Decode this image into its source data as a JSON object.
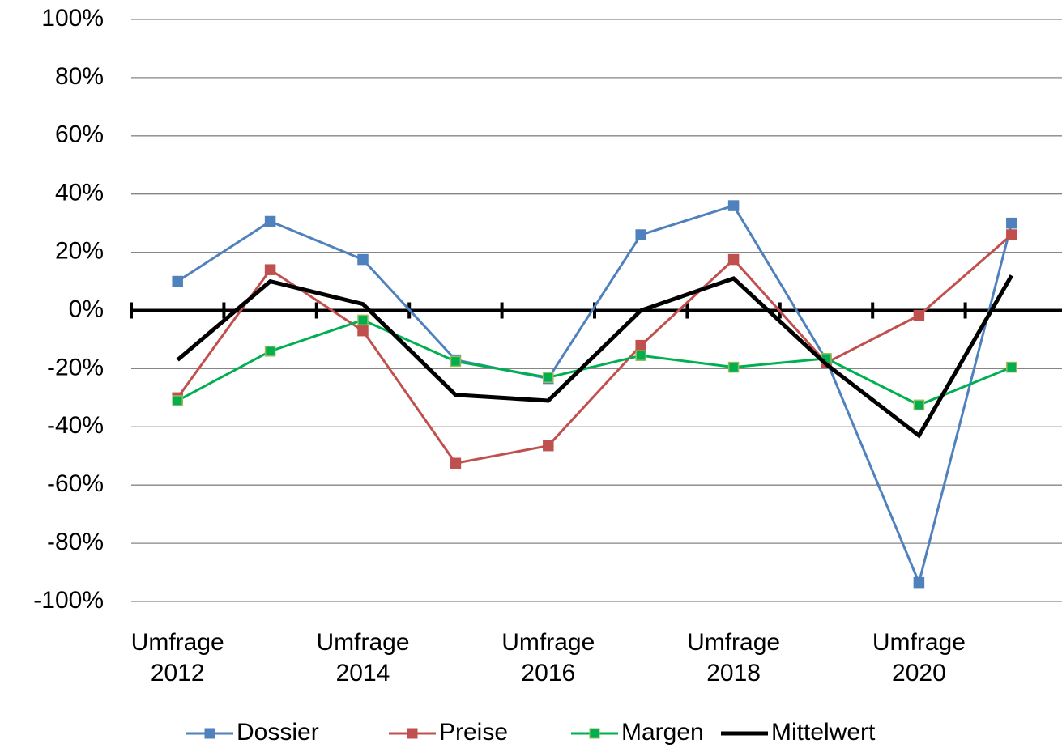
{
  "chart_data": {
    "type": "line",
    "categories": [
      "Umfrage 2012",
      null,
      "Umfrage 2014",
      null,
      "Umfrage 2016",
      null,
      "Umfrage 2018",
      null,
      "Umfrage 2020",
      null
    ],
    "series": [
      {
        "name": "Dossier",
        "color": "#4f81bd",
        "marker": "square",
        "width": 3,
        "values": [
          10,
          30.6,
          17.5,
          -17,
          -23.4,
          26,
          36,
          -17,
          -93.5,
          30
        ]
      },
      {
        "name": "Preise",
        "color": "#c0504d",
        "marker": "square",
        "width": 3,
        "values": [
          -30,
          14,
          -7,
          -52.5,
          -46.5,
          -12,
          17.5,
          -18,
          -1.7,
          26
        ]
      },
      {
        "name": "Margen",
        "color": "#00b050",
        "marker": "square",
        "width": 3,
        "values": [
          -31,
          -14,
          -3.3,
          -17.5,
          -23,
          -15.5,
          -19.5,
          -16.5,
          -32.5,
          -19.5
        ]
      },
      {
        "name": "Mittelwert",
        "color": "#000000",
        "marker": "none",
        "width": 5,
        "values": [
          -17,
          10,
          2.2,
          -29,
          -31,
          0,
          11,
          -18.5,
          -43,
          12
        ]
      }
    ],
    "ylim": [
      -100,
      100
    ],
    "yticks": [
      {
        "value": -100,
        "label": "-100%"
      },
      {
        "value": -80,
        "label": "-80%"
      },
      {
        "value": -60,
        "label": "-60%"
      },
      {
        "value": -40,
        "label": "-40%"
      },
      {
        "value": -20,
        "label": "-20%"
      },
      {
        "value": 0,
        "label": "0%"
      },
      {
        "value": 20,
        "label": "20%"
      },
      {
        "value": 40,
        "label": "40%"
      },
      {
        "value": 60,
        "label": "60%"
      },
      {
        "value": 80,
        "label": "80%"
      },
      {
        "value": 100,
        "label": "100%"
      }
    ],
    "grid": true,
    "legend": "bottom"
  }
}
